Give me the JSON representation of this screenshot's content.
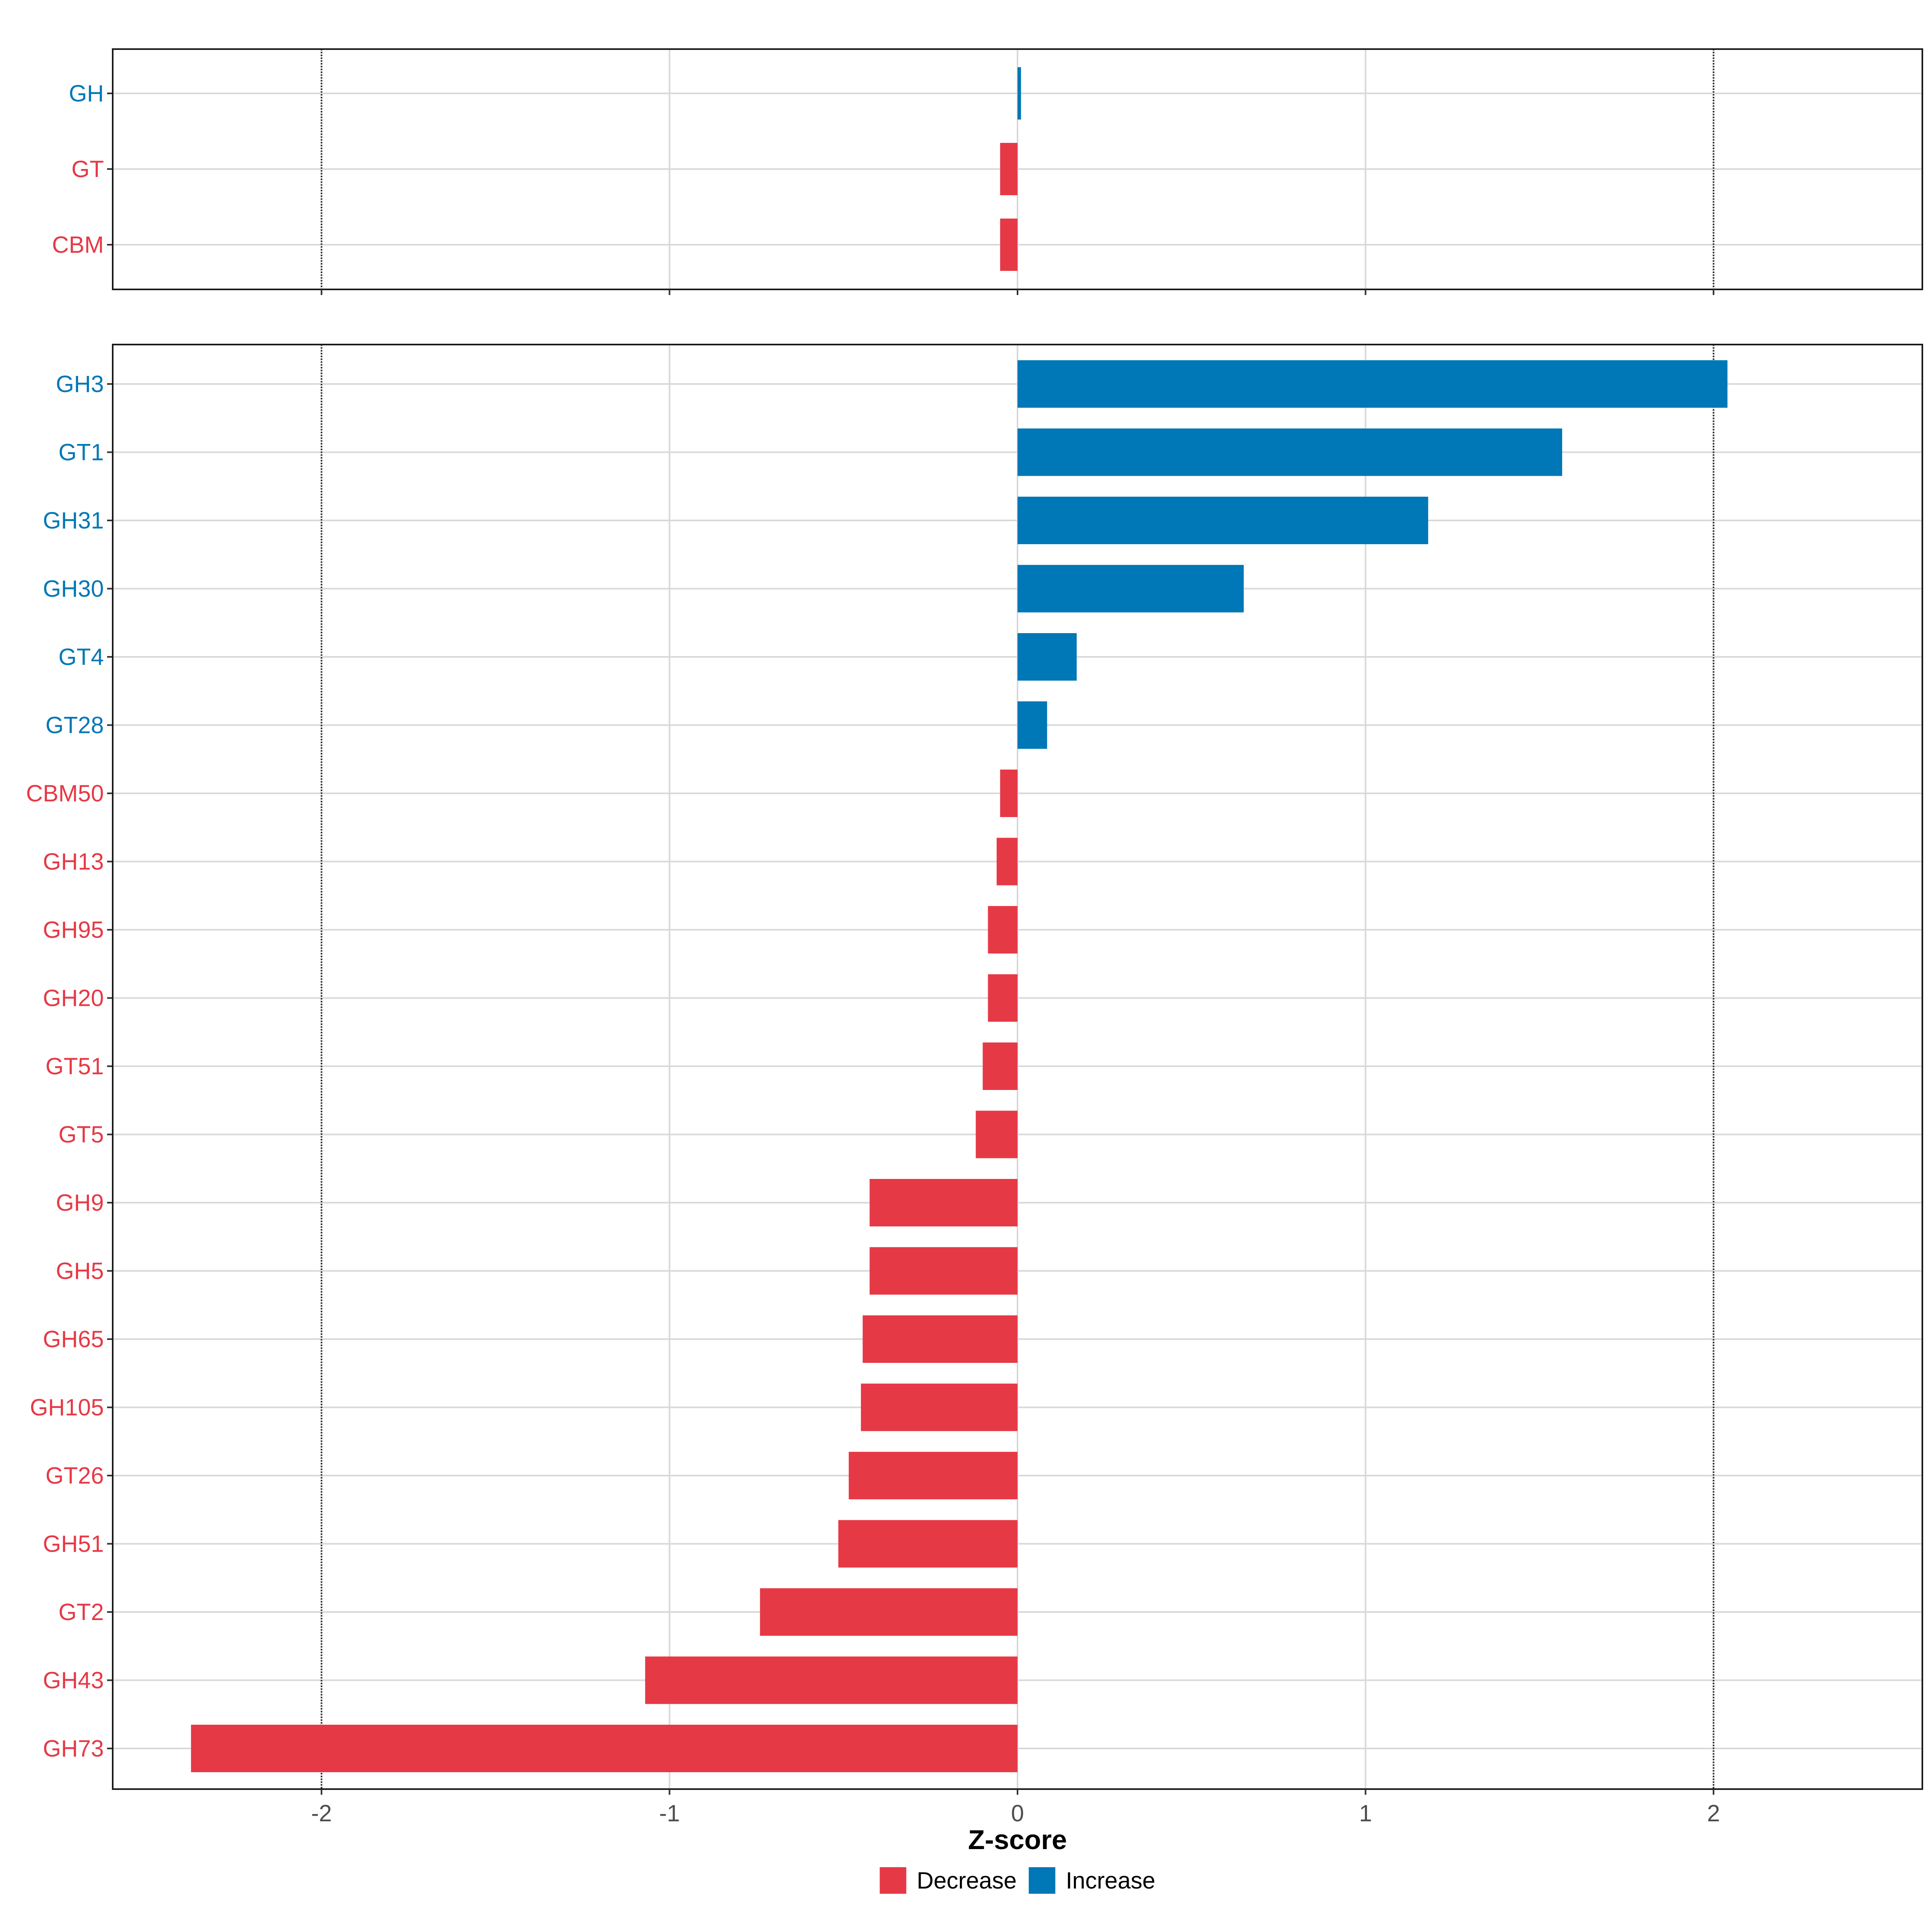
{
  "chart_data": {
    "type": "bar",
    "orientation": "horizontal",
    "xlabel": "Z-score",
    "xlim": [
      -2.6,
      2.6
    ],
    "xticks": [
      "-2",
      "-1",
      "0",
      "1",
      "2"
    ],
    "xtick_values": [
      -2,
      -1,
      0,
      1,
      2
    ],
    "reference_lines": [
      -2,
      2
    ],
    "grid": true,
    "legend": {
      "placement": "bottom",
      "entries": [
        {
          "label": "Decrease",
          "color": "#e63946"
        },
        {
          "label": "Increase",
          "color": "#0077b6"
        }
      ]
    },
    "panels": [
      {
        "categories": [
          "GH",
          "GT",
          "CBM"
        ],
        "values": [
          0.01,
          -0.05,
          -0.05
        ]
      },
      {
        "categories": [
          "GH3",
          "GT1",
          "GH31",
          "GH30",
          "GT4",
          "GT28",
          "CBM50",
          "GH13",
          "GH95",
          "GH20",
          "GT51",
          "GT5",
          "GH9",
          "GH5",
          "GH65",
          "GH105",
          "GT26",
          "GH51",
          "GT2",
          "GH43",
          "GH73"
        ],
        "values": [
          2.04,
          1.565,
          1.18,
          0.65,
          0.17,
          0.085,
          -0.05,
          -0.06,
          -0.085,
          -0.085,
          -0.1,
          -0.12,
          -0.425,
          -0.425,
          -0.445,
          -0.45,
          -0.485,
          -0.515,
          -0.74,
          -1.07,
          -2.375
        ]
      }
    ]
  }
}
